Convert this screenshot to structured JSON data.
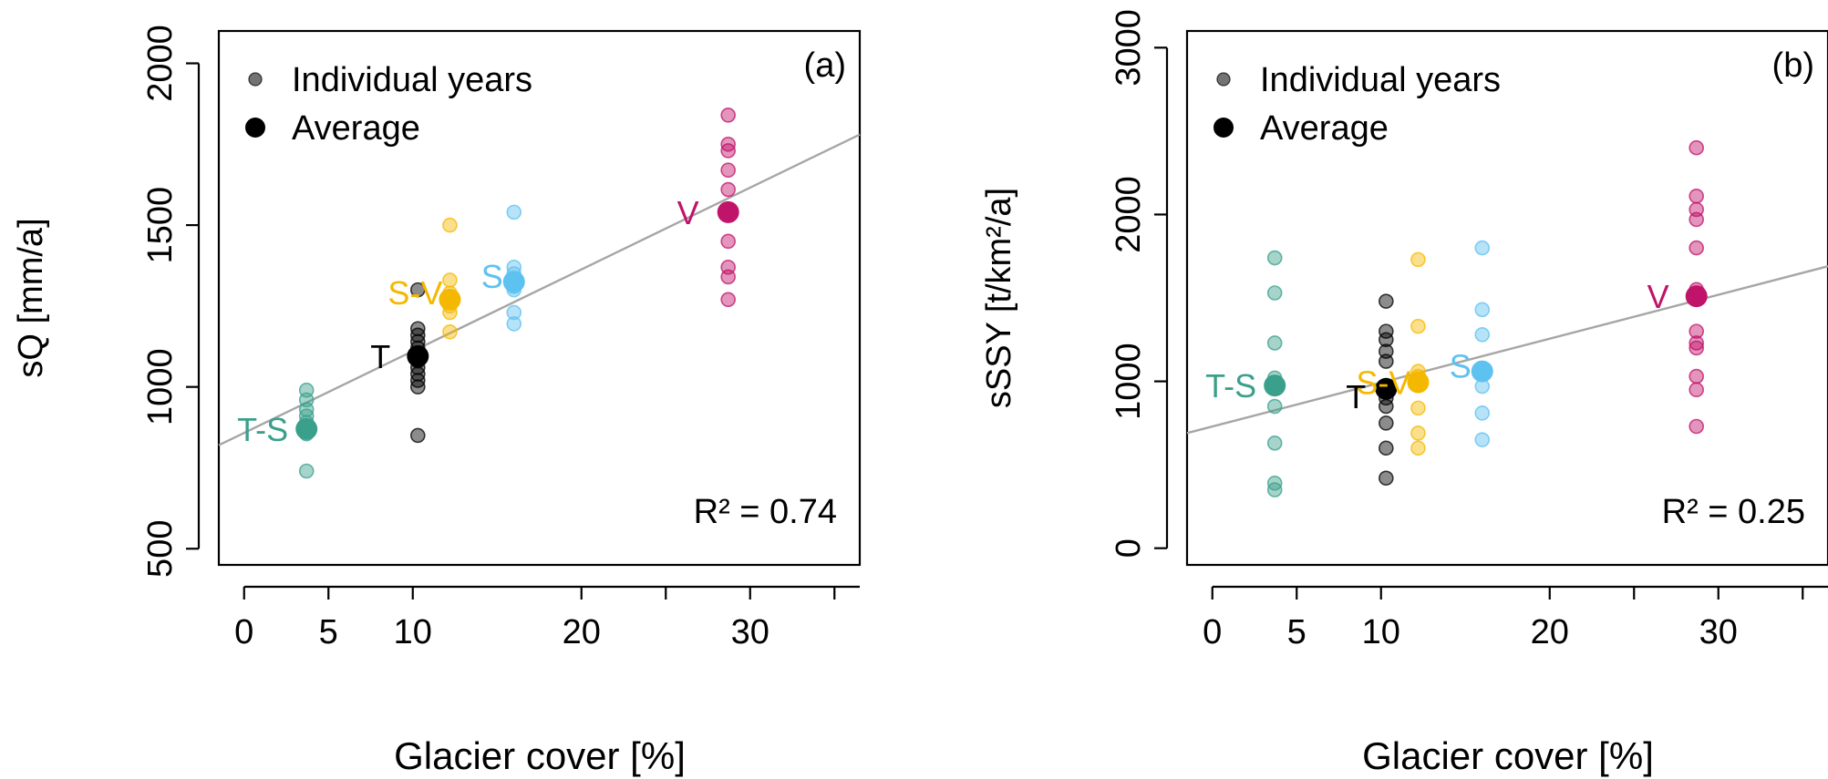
{
  "chart_data": [
    {
      "panel_label": "(a)",
      "type": "scatter",
      "ylabel": "sQ [mm/a]",
      "xlabel": "Glacier cover [%]",
      "xlim": [
        -1.5,
        36.5
      ],
      "ylim": [
        450,
        2100
      ],
      "xticks": [
        0,
        5,
        10,
        20,
        30
      ],
      "yticks": [
        500,
        1000,
        1500,
        2000
      ],
      "legend": {
        "placement": "top-left",
        "items": [
          "Individual years",
          "Average"
        ]
      },
      "r2_text": "R² = 0.74",
      "regression": {
        "x": [
          -1.5,
          36.5
        ],
        "y": [
          820,
          1780
        ]
      },
      "series": [
        {
          "name": "T-S",
          "label": "T-S",
          "color": "#3aa08c",
          "x": 3.7,
          "years": [
            990,
            960,
            930,
            910,
            890,
            870,
            855,
            740
          ],
          "average": 870
        },
        {
          "name": "T",
          "label": "T",
          "color": "#000000",
          "x": 10.3,
          "years": [
            1300,
            1180,
            1160,
            1140,
            1120,
            1100,
            1080,
            1060,
            1040,
            1020,
            1000,
            850
          ],
          "average": 1095
        },
        {
          "name": "S-V",
          "label": "S-V",
          "color": "#f5b800",
          "x": 12.2,
          "years": [
            1500,
            1330,
            1290,
            1270,
            1250,
            1230,
            1170
          ],
          "average": 1270
        },
        {
          "name": "S",
          "label": "S",
          "color": "#5ec2f0",
          "x": 16.0,
          "years": [
            1540,
            1370,
            1350,
            1330,
            1310,
            1300,
            1230,
            1195
          ],
          "average": 1325
        },
        {
          "name": "V",
          "label": "V",
          "color": "#c0136a",
          "x": 28.7,
          "years": [
            1840,
            1750,
            1730,
            1670,
            1610,
            1550,
            1450,
            1370,
            1340,
            1270
          ],
          "average": 1540
        }
      ]
    },
    {
      "panel_label": "(b)",
      "type": "scatter",
      "ylabel": "sSSY [t/km²/a]",
      "xlabel": "Glacier cover [%]",
      "xlim": [
        -1.5,
        36.5
      ],
      "ylim": [
        -100,
        3100
      ],
      "xticks": [
        0,
        5,
        10,
        20,
        30
      ],
      "yticks": [
        0,
        1000,
        2000,
        3000
      ],
      "ytick_labels": [
        "0",
        "1000",
        "2000",
        "3000"
      ],
      "legend": {
        "placement": "top-left",
        "items": [
          "Individual years",
          "Average"
        ]
      },
      "r2_text": "R² = 0.25",
      "regression": {
        "x": [
          -1.5,
          36.5
        ],
        "y": [
          690,
          1690
        ]
      },
      "series": [
        {
          "name": "T-S",
          "label": "T-S",
          "color": "#3aa08c",
          "x": 3.7,
          "years": [
            1740,
            1530,
            1230,
            1020,
            990,
            850,
            630,
            390,
            350
          ],
          "average": 975
        },
        {
          "name": "T",
          "label": "T",
          "color": "#000000",
          "x": 10.3,
          "years": [
            1480,
            1300,
            1250,
            1180,
            1120,
            950,
            900,
            850,
            750,
            600,
            420
          ],
          "average": 955
        },
        {
          "name": "S-V",
          "label": "S-V",
          "color": "#f5b800",
          "x": 12.2,
          "years": [
            1730,
            1330,
            1060,
            1030,
            840,
            690,
            600
          ],
          "average": 995
        },
        {
          "name": "S",
          "label": "S",
          "color": "#5ec2f0",
          "x": 16.0,
          "years": [
            1800,
            1430,
            1280,
            1070,
            970,
            810,
            650
          ],
          "average": 1060
        },
        {
          "name": "V",
          "label": "V",
          "color": "#c0136a",
          "x": 28.7,
          "years": [
            2400,
            2110,
            2030,
            1970,
            1800,
            1550,
            1300,
            1230,
            1200,
            1030,
            950,
            730
          ],
          "average": 1510
        }
      ]
    }
  ]
}
